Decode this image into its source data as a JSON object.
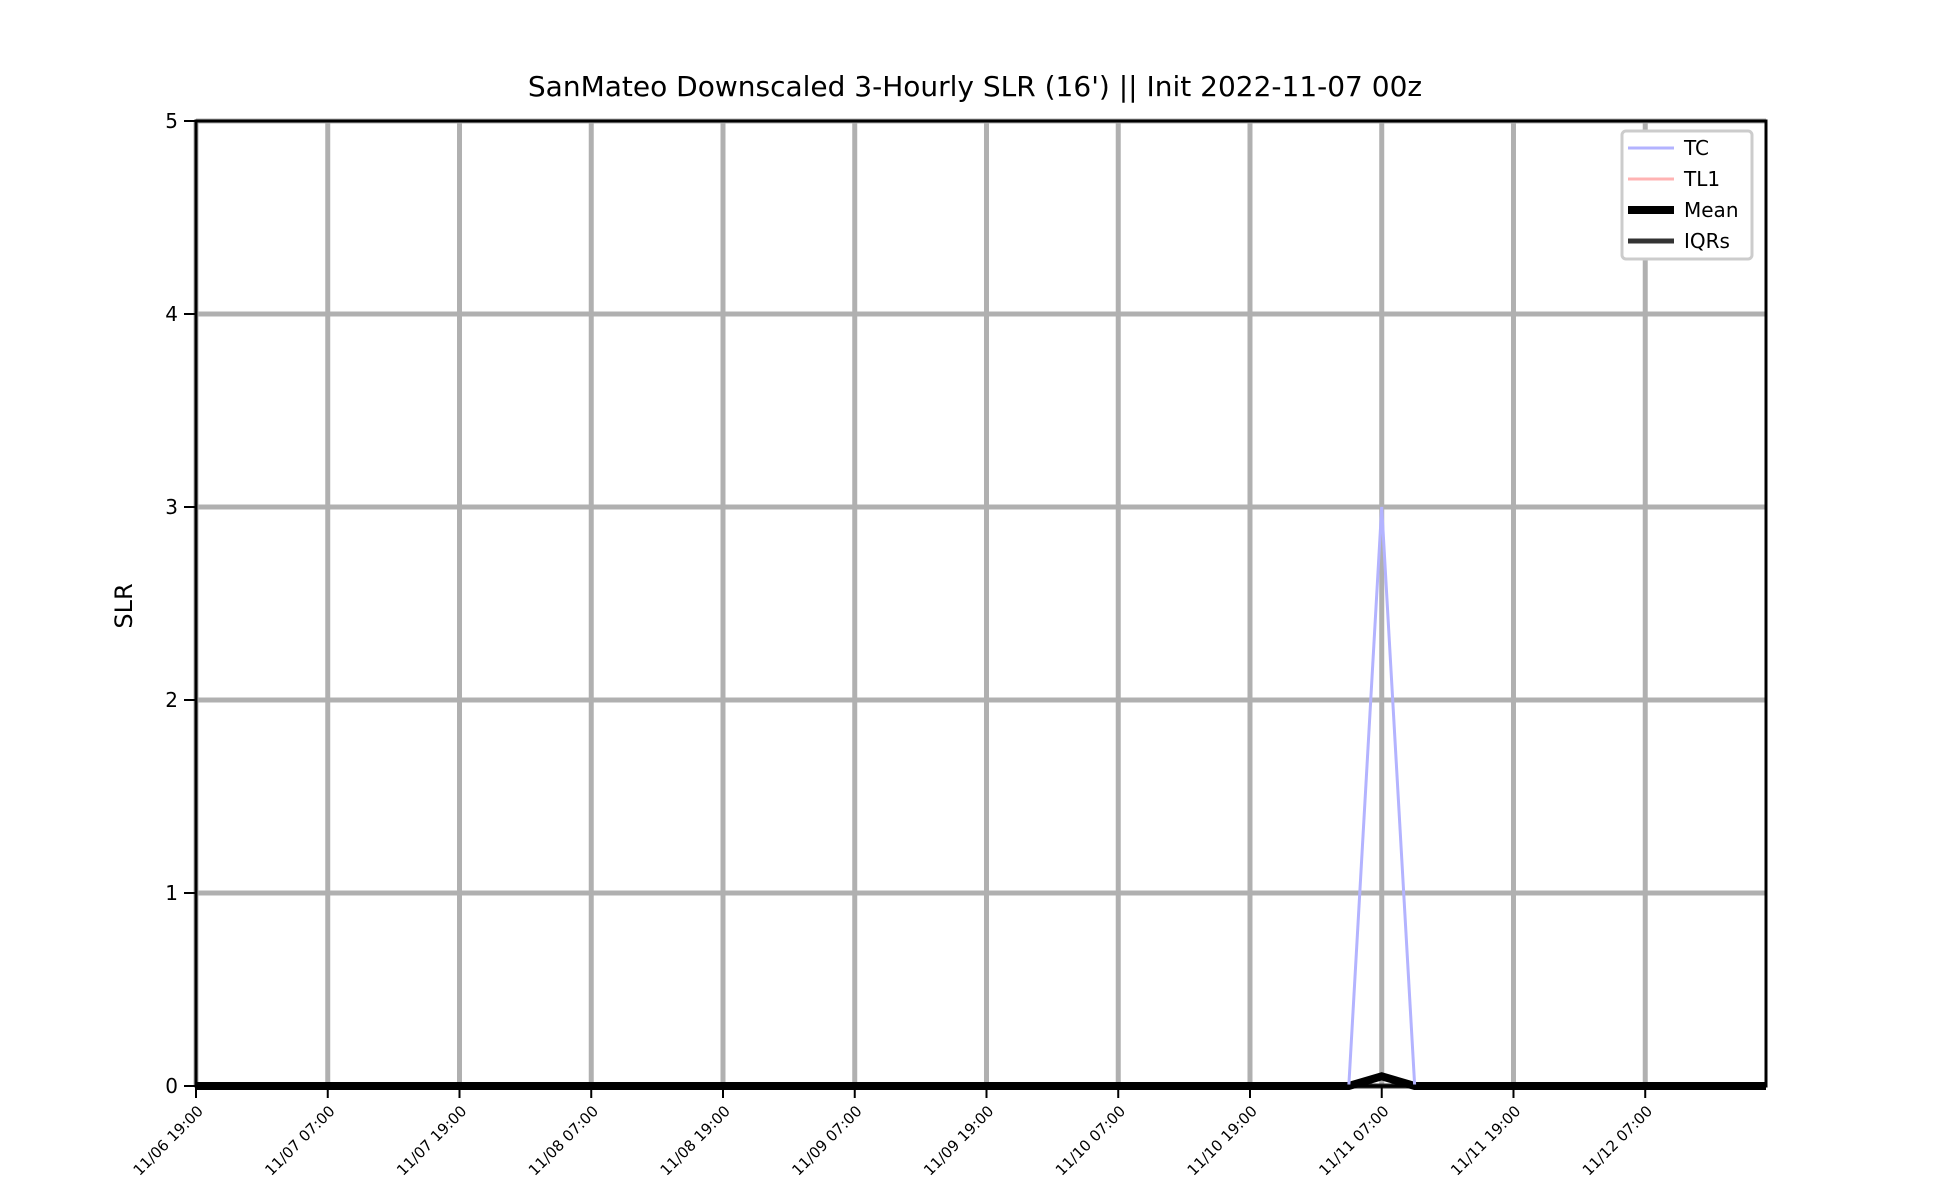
{
  "chart_data": {
    "type": "line",
    "title": "SanMateo Downscaled 3-Hourly SLR (16') || Init 2022-11-07 00z",
    "xlabel": "",
    "ylabel": "SLR",
    "ylim": [
      0,
      5
    ],
    "yticks": [
      0,
      1,
      2,
      3,
      4,
      5
    ],
    "xlim": [
      "11/06 19:00",
      "11/12 18:00"
    ],
    "xticks": [
      "11/06 19:00",
      "11/07 07:00",
      "11/07 19:00",
      "11/08 07:00",
      "11/08 19:00",
      "11/09 07:00",
      "11/09 19:00",
      "11/10 07:00",
      "11/10 19:00",
      "11/11 07:00",
      "11/11 19:00",
      "11/12 07:00"
    ],
    "grid": true,
    "legend_position": "top-right",
    "series": [
      {
        "name": "TC",
        "color": "#b3b3ff",
        "x": [
          "11/06 19:00",
          "11/11 04:00",
          "11/11 07:00",
          "11/11 10:00",
          "11/12 18:00"
        ],
        "values": [
          0,
          0,
          3,
          0,
          0
        ]
      },
      {
        "name": "TL1",
        "color": "#ffb3b3",
        "x": [
          "11/06 19:00",
          "11/12 18:00"
        ],
        "values": [
          0,
          0
        ]
      },
      {
        "name": "Mean",
        "color": "#000000",
        "x": [
          "11/06 19:00",
          "11/11 04:00",
          "11/11 07:00",
          "11/11 10:00",
          "11/12 18:00"
        ],
        "values": [
          0,
          0,
          0.05,
          0,
          0
        ]
      },
      {
        "name": "IQRs",
        "color": "#333333",
        "x": [
          "11/06 19:00",
          "11/12 18:00"
        ],
        "values": [
          0,
          0
        ]
      }
    ]
  }
}
